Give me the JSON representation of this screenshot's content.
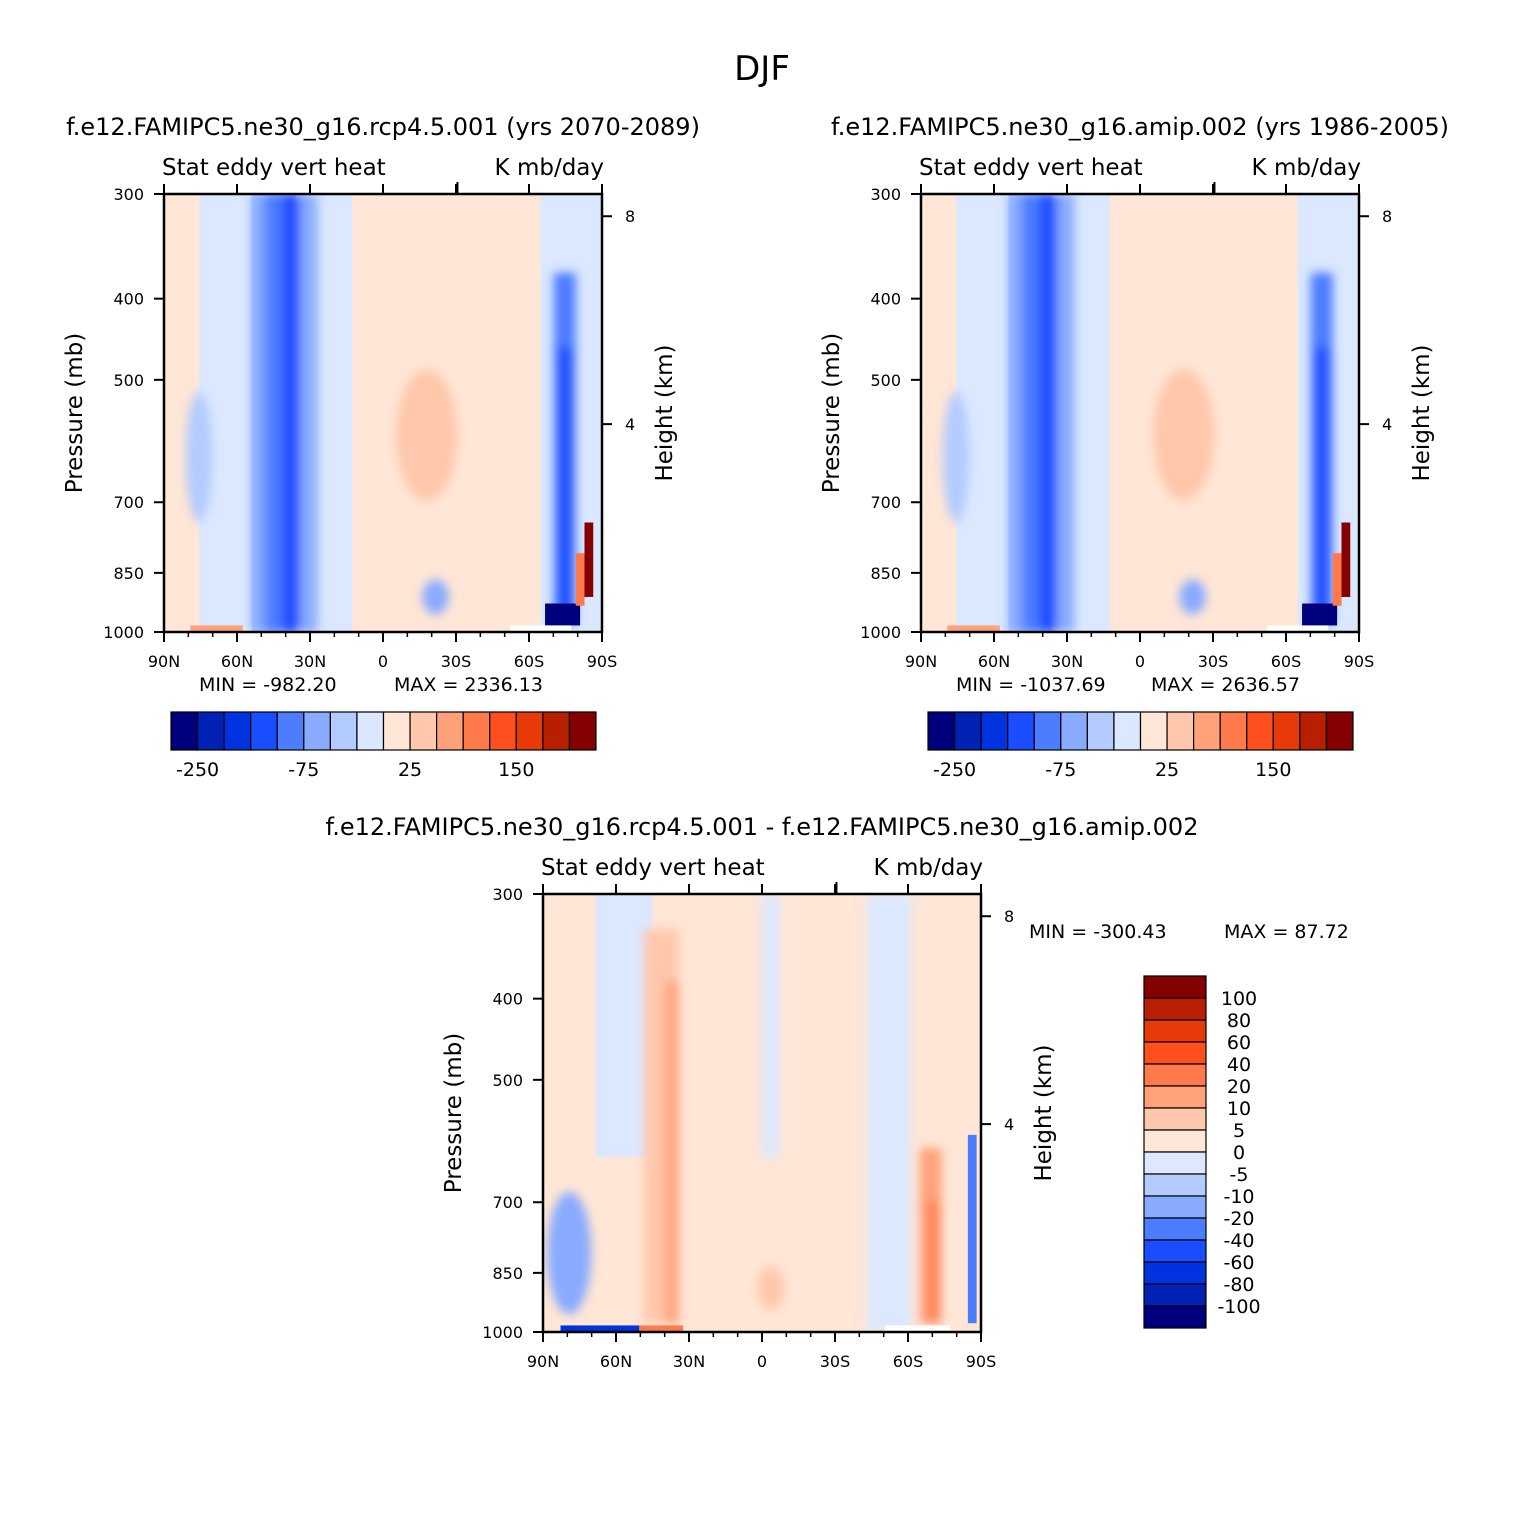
{
  "page_title": "DJF",
  "panels": [
    {
      "id": "test",
      "case_title": "f.e12.FAMIPC5.ne30_g16.rcp4.5.001 (yrs 2070-2089)",
      "subtitle_left": "Stat eddy vert heat",
      "subtitle_right": "K mb/day",
      "ylabel": "Pressure (mb)",
      "ylabel_right": "Height (km)",
      "min_text": "MIN = -982.20",
      "max_text": "MAX = 2336.13"
    },
    {
      "id": "control",
      "case_title": "f.e12.FAMIPC5.ne30_g16.amip.002 (yrs 1986-2005)",
      "subtitle_left": "Stat eddy vert heat",
      "subtitle_right": "K mb/day",
      "ylabel": "Pressure (mb)",
      "ylabel_right": "Height (km)",
      "min_text": "MIN = -1037.69",
      "max_text": "MAX = 2636.57"
    },
    {
      "id": "difference",
      "case_title": "f.e12.FAMIPC5.ne30_g16.rcp4.5.001 - f.e12.FAMIPC5.ne30_g16.amip.002",
      "subtitle_left": "Stat eddy vert heat",
      "subtitle_right": "K mb/day",
      "ylabel": "Pressure (mb)",
      "ylabel_right": "Height (km)",
      "min_text": "MIN = -300.43",
      "max_text": "MAX = 87.72"
    }
  ],
  "chart_data": [
    {
      "type": "heatmap",
      "x_tick_labels": [
        "90N",
        "60N",
        "30N",
        "0",
        "30S",
        "60S",
        "90S"
      ],
      "x_values": [
        90,
        60,
        30,
        0,
        -30,
        -60,
        -90
      ],
      "y_tick_labels": [
        "300",
        "400",
        "500",
        "700",
        "850",
        "1000"
      ],
      "y_values": [
        300,
        400,
        500,
        700,
        850,
        1000
      ],
      "y_scale": "log",
      "y_range": [
        1000,
        300
      ],
      "right_axis_tick_labels": [
        "8",
        "4"
      ],
      "right_axis_values_km": [
        8,
        4
      ],
      "colorbar": {
        "orientation": "horizontal",
        "colors": [
          "#00007f",
          "#0021b3",
          "#0033e0",
          "#1a4dff",
          "#4c7cff",
          "#88aaff",
          "#b4cbff",
          "#dbe8ff",
          "#ffe6d6",
          "#ffc7ab",
          "#ffa27a",
          "#ff7a4a",
          "#ff4f1f",
          "#e83a08",
          "#b81e00",
          "#850000"
        ],
        "shown_labels": [
          "-250",
          "-75",
          "25",
          "150"
        ]
      }
    },
    {
      "type": "heatmap",
      "x_tick_labels": [
        "90N",
        "60N",
        "30N",
        "0",
        "30S",
        "60S",
        "90S"
      ],
      "x_values": [
        90,
        60,
        30,
        0,
        -30,
        -60,
        -90
      ],
      "y_tick_labels": [
        "300",
        "400",
        "500",
        "700",
        "850",
        "1000"
      ],
      "y_values": [
        300,
        400,
        500,
        700,
        850,
        1000
      ],
      "y_scale": "log",
      "y_range": [
        1000,
        300
      ],
      "right_axis_tick_labels": [
        "8",
        "4"
      ],
      "right_axis_values_km": [
        8,
        4
      ],
      "colorbar": {
        "orientation": "horizontal",
        "colors": [
          "#00007f",
          "#0021b3",
          "#0033e0",
          "#1a4dff",
          "#4c7cff",
          "#88aaff",
          "#b4cbff",
          "#dbe8ff",
          "#ffe6d6",
          "#ffc7ab",
          "#ffa27a",
          "#ff7a4a",
          "#ff4f1f",
          "#e83a08",
          "#b81e00",
          "#850000"
        ],
        "shown_labels": [
          "-250",
          "-75",
          "25",
          "150"
        ]
      }
    },
    {
      "type": "heatmap",
      "x_tick_labels": [
        "90N",
        "60N",
        "30N",
        "0",
        "30S",
        "60S",
        "90S"
      ],
      "x_values": [
        90,
        60,
        30,
        0,
        -30,
        -60,
        -90
      ],
      "y_tick_labels": [
        "300",
        "400",
        "500",
        "700",
        "850",
        "1000"
      ],
      "y_values": [
        300,
        400,
        500,
        700,
        850,
        1000
      ],
      "y_scale": "log",
      "y_range": [
        1000,
        300
      ],
      "right_axis_tick_labels": [
        "8",
        "4"
      ],
      "right_axis_values_km": [
        8,
        4
      ],
      "colorbar": {
        "orientation": "vertical",
        "colors": [
          "#00007f",
          "#0021b3",
          "#0033e0",
          "#1a4dff",
          "#4c7cff",
          "#88aaff",
          "#b4cbff",
          "#dbe8ff",
          "#ffe6d6",
          "#ffc7ab",
          "#ffa27a",
          "#ff7a4a",
          "#ff4f1f",
          "#e83a08",
          "#b81e00",
          "#850000"
        ],
        "shown_labels": [
          "100",
          "80",
          "60",
          "40",
          "20",
          "10",
          "5",
          "0",
          "-5",
          "-10",
          "-20",
          "-40",
          "-60",
          "-80",
          "-100"
        ]
      }
    }
  ]
}
